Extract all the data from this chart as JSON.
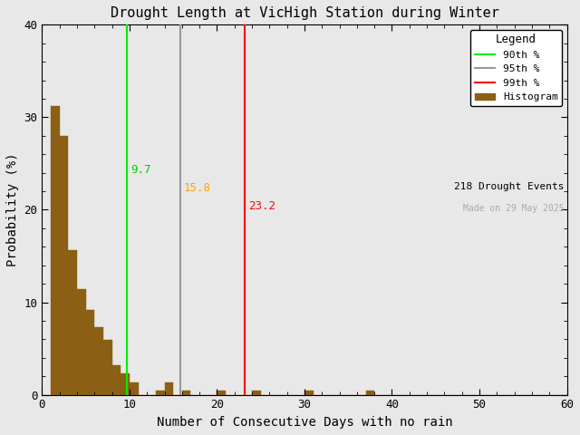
{
  "title": "Drought Length at VicHigh Station during Winter",
  "xlabel": "Number of Consecutive Days with no rain",
  "ylabel": "Probability (%)",
  "xlim": [
    0,
    60
  ],
  "ylim": [
    0,
    40
  ],
  "bar_color": "#8B6014",
  "bar_edge_color": "#8B6014",
  "background_color": "#e8e8e8",
  "axes_facecolor": "#e8e8e8",
  "percentile_90": 9.7,
  "percentile_95": 15.8,
  "percentile_99": 23.2,
  "p90_color": "#00EE00",
  "p95_color": "#999999",
  "p99_color": "#FF0000",
  "p90_label_color": "#00CC00",
  "p95_label_color": "#FFA500",
  "p99_label_color": "#FF0000",
  "n_events": 218,
  "made_on": "Made on 29 May 2025",
  "legend_title": "Legend",
  "bin_width": 1,
  "bar_heights": [
    0.0,
    31.19,
    27.98,
    15.6,
    11.47,
    9.17,
    7.34,
    5.96,
    3.21,
    2.29,
    1.38,
    0.0,
    0.0,
    0.46,
    1.38,
    0.0,
    0.46,
    0.0,
    0.0,
    0.0,
    0.46,
    0.0,
    0.0,
    0.0,
    0.46,
    0.0,
    0.0,
    0.0,
    0.0,
    0.0,
    0.46,
    0.0,
    0.0,
    0.0,
    0.0,
    0.0,
    0.0,
    0.46,
    0.0,
    0.0,
    0.0,
    0.0,
    0.0,
    0.0,
    0.0,
    0.0,
    0.0,
    0.0,
    0.0,
    0.0,
    0.0,
    0.0,
    0.0,
    0.0,
    0.0,
    0.0,
    0.0,
    0.0,
    0.0,
    0.0
  ],
  "legend_p90_label": "90th %",
  "legend_p95_label": "95th %",
  "legend_p99_label": "99th %",
  "legend_hist_label": "Histogram",
  "n_events_label": "218 Drought Events",
  "figsize": [
    6.4,
    4.8
  ],
  "dpi": 100
}
